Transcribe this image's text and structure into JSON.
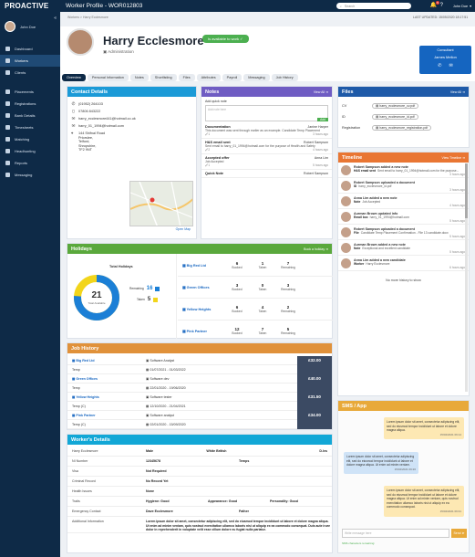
{
  "topbar": {
    "brand": "PROACTIVE",
    "title": "Worker Profile - WOR012803",
    "search_placeholder": "Search",
    "notif_badge": "5",
    "user": "John Doe"
  },
  "sidebar": {
    "user": "John Doe",
    "items": [
      {
        "label": "Dashboard"
      },
      {
        "label": "Workers"
      },
      {
        "label": "Clients"
      },
      {
        "label": "Placements"
      },
      {
        "label": "Registrations"
      },
      {
        "label": "Bank Details"
      },
      {
        "label": "Timesheets"
      },
      {
        "label": "Matching"
      },
      {
        "label": "Headhunting"
      },
      {
        "label": "Reports"
      },
      {
        "label": "Messaging"
      }
    ]
  },
  "breadcrumb": "Workers > Harry Ecclesmore",
  "header": {
    "name": "Harry Ecclesmore",
    "status": "Is available to work",
    "subtitle": "Administration",
    "last_updated": "LAST UPDATED: 15/05/2020 18:17:51",
    "consultant_label": "Consultant",
    "consultant_name": "James Mellon"
  },
  "tabs": [
    "Overview",
    "Personal Information",
    "Notes",
    "Shortlisting",
    "Files",
    "Attributes",
    "Payroll",
    "Messaging",
    "Job History"
  ],
  "contact": {
    "title": "Contact Details",
    "phone": "(01952) 264103",
    "mobile": "07806 843222",
    "email1": "harry_ecclesmore441@hotmail.co.uk",
    "email2": "harry_01_1994@hotmail.com",
    "address": [
      "144 Shifnal Road",
      "Priorslee,",
      "Telford,",
      "Shropshire,",
      "TF2 9NT"
    ],
    "map_link": "Open Map"
  },
  "notes": {
    "title": "Notes",
    "link": "View All",
    "quick_label": "Add quick note",
    "quick_placeholder": "Add note here",
    "add_btn": "Add",
    "items": [
      {
        "title": "Documentation",
        "author": "Janine Harper",
        "text": "This document was sent through earlier as an example. Candidate Temp Placement",
        "count": "1",
        "date": "3 hours ago"
      },
      {
        "title": "H&S email sent",
        "author": "Robert Sampson",
        "text": "Sent email to harry_01_1994@hotmail.com for the purpose of Health and Safety",
        "count": "2",
        "date": "4 hours ago"
      },
      {
        "title": "Accepted offer",
        "author": "Anna Lim",
        "text": "Job Accepted",
        "count": "1",
        "date": "5 hours ago"
      },
      {
        "title": "Quick Note",
        "author": "Robert Sampson",
        "text": "",
        "count": "",
        "date": ""
      }
    ]
  },
  "files": {
    "title": "Files",
    "link": "View All",
    "items": [
      {
        "type": "CV",
        "name": "harry_ecclesmore_cv.pdf"
      },
      {
        "type": "ID",
        "name": "harry_ecclesmore_id.pdf"
      },
      {
        "type": "Registration",
        "name": "harry_ecclesmore_registration.pdf"
      }
    ]
  },
  "timeline": {
    "title": "Timeline",
    "link": "View Timeline",
    "items": [
      {
        "who": "Robert Sampson added a new note",
        "title": "H&S email sent",
        "text": "Sent email to harry_01_1994@hotmail.com for the purpose...",
        "date": "3 hours ago"
      },
      {
        "who": "Robert Sampson uploaded a document",
        "title": "ID",
        "text": "harry_ecclesmore_id.pdf",
        "date": "3 hours ago"
      },
      {
        "who": "Anna Lim added a new note",
        "title": "Note",
        "text": "Job Accepted",
        "date": "4 hours ago"
      },
      {
        "who": "Aurman Brown updated info",
        "title": "Email box",
        "text": "harry_01_1994@hotmail.com",
        "date": "5 hours ago"
      },
      {
        "who": "Robert Sampson uploaded a document",
        "title": "File",
        "text": "Candidate Temp Placement Confirmation - File 13 candidate.docx",
        "date": "5 hours ago"
      },
      {
        "who": "Aurman Brown added a new note",
        "title": "Note",
        "text": "Exceptional and excellent candidate",
        "date": "5 hours ago"
      },
      {
        "who": "Anna Lim added a new candidate",
        "title": "Worker",
        "text": "Harry Ecclesmore",
        "date": "6 hours ago"
      }
    ],
    "end": "No more history to show"
  },
  "holidays": {
    "title": "Holidays",
    "link": "Book a holiday",
    "total_label": "Total Holidays",
    "total": "21",
    "total_sub": "Total Available",
    "legend": [
      {
        "label": "Remaining",
        "value": "16",
        "color": "#1b7fd6"
      },
      {
        "label": "Taken",
        "value": "5",
        "color": "#f2d51b"
      }
    ],
    "rows": [
      {
        "name": "Big Red Ltd",
        "booked": "6",
        "taken": "1",
        "remaining": "7"
      },
      {
        "name": "Green Offices",
        "booked": "3",
        "taken": "0",
        "remaining": "3"
      },
      {
        "name": "Yellow Heights",
        "booked": "6",
        "taken": "4",
        "remaining": "2"
      },
      {
        "name": "Pink Partner",
        "booked": "12",
        "taken": "7",
        "remaining": "5"
      }
    ],
    "col_booked": "Booked",
    "col_taken": "Taken",
    "col_remaining": "Remaining",
    "chart": {
      "remaining": 16,
      "taken": 5
    }
  },
  "jobs": {
    "title": "Job History",
    "rows": [
      {
        "client": "Big Red Ltd",
        "role": "Software Analyst",
        "date": "Temp",
        "pay": "£32.00"
      },
      {
        "client": "Temp",
        "role": "01/07/2021 - 01/03/2022",
        "date": "",
        "pay": ""
      },
      {
        "client": "Green Offices",
        "role": "Software dev",
        "date": "",
        "pay": "£40.00"
      },
      {
        "client": "Temp",
        "role": "22/01/2020 - 19/06/2020",
        "date": "",
        "pay": ""
      },
      {
        "client": "Yellow Heights",
        "role": "Software tester",
        "date": "",
        "pay": "£31.50"
      },
      {
        "client": "Temp (C)",
        "role": "12/10/2020 - 21/04/2021",
        "date": "",
        "pay": ""
      },
      {
        "client": "Pink Partner",
        "role": "Software analyst",
        "date": "",
        "pay": "£34.00"
      },
      {
        "client": "Temp (C)",
        "role": "02/01/2020 - 15/09/2020",
        "date": "",
        "pay": ""
      }
    ]
  },
  "worker": {
    "title": "Worker's Details",
    "rows": [
      {
        "a": "Harry Ecclesmore",
        "b": "Male",
        "c": "White British",
        "d": "D.lvs"
      },
      {
        "a": "NI Number",
        "b": "12345678",
        "c": "Temps",
        "d": ""
      },
      {
        "a": "Visa",
        "b": "Not Required",
        "c": "",
        "d": ""
      },
      {
        "a": "Criminal Record",
        "b": "No Record Yet",
        "c": "",
        "d": ""
      },
      {
        "a": "Health Issues",
        "b": "None",
        "c": "",
        "d": ""
      },
      {
        "a": "Traits",
        "b": "Hygiene: Good",
        "c": "Appearance: Good",
        "d": "Personality: Good"
      },
      {
        "a": "Emergency Contact",
        "b": "Dave Ecclesmore",
        "c": "Father",
        "d": ""
      },
      {
        "a": "Additional Information",
        "b": "Lorem ipsum dolor sit amet, consectetur adipiscing elit, sed do eiusmod tempor incididunt ut labore et dolore magna aliqua. Ut enim ad minim veniam, quis nostrud exercitation ullamco laboris nisi ut aliquip ex ea commodo consequat. Duis aute irure dolor in reprehenderit in voluptate velit esse cillum dolore eu fugiat nulla pariatur.",
        "c": "",
        "d": ""
      }
    ]
  },
  "sms": {
    "title": "SMS / App",
    "input_placeholder": "Write message here",
    "send": "Send",
    "hint": "SMS characters remaining: ",
    "msgs": [
      {
        "side": "right",
        "text": "Lorem ipsum dolor sit amet, consectetur adipiscing elit, sed do eiusmod tempor incididunt ut labore et dolore magna aliqua.",
        "time": "15/02/2021 09:14"
      },
      {
        "side": "left",
        "text": "Lorem ipsum dolor sit amet, consectetur adipiscing elit, sed do eiusmod tempor incididunt ut labore et dolore magna aliqua. Ut enim ad minim veniam.",
        "time": "15/02/2021 09:20"
      },
      {
        "side": "right",
        "text": "Lorem ipsum dolor sit amet, consectetur adipiscing elit, sed do eiusmod tempor incididunt ut labore et dolore magna aliqua. Ut enim ad minim veniam, quis nostrud exercitation ullamco laboris nisi ut aliquip ex ea commodo consequat.",
        "time": "15/02/2021 09:31"
      }
    ]
  }
}
